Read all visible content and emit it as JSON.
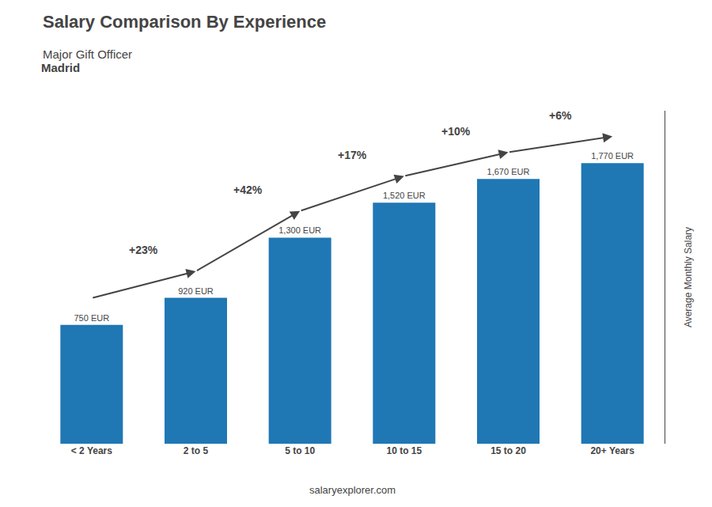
{
  "chart_data": {
    "type": "bar",
    "title": "Salary Comparison By Experience",
    "subtitle": "Major Gift Officer",
    "ylabel": "Average Monthly Salary",
    "categories": [
      "< 2 Years",
      "2 to 5",
      "5 to 10",
      "10 to 15",
      "15 to 20",
      "20+ Years"
    ],
    "values": [
      750,
      920,
      1300,
      1520,
      1670,
      1770
    ],
    "value_labels": [
      "750 EUR",
      "920 EUR",
      "1,300 EUR",
      "1,520 EUR",
      "1,670 EUR",
      "1,770 EUR"
    ],
    "data_labels": true,
    "ylim": [
      0,
      2100
    ],
    "tick_labels": "x",
    "grid": false,
    "annotations": [
      {
        "text": "Madrid"
      },
      {
        "text": "+23%",
        "from": "< 2 Years",
        "to": "2 to 5"
      },
      {
        "text": "+42%",
        "from": "2 to 5",
        "to": "5 to 10"
      },
      {
        "text": "+17%",
        "from": "5 to 10",
        "to": "10 to 15"
      },
      {
        "text": "+10%",
        "from": "10 to 15",
        "to": "15 to 20"
      },
      {
        "text": "+6%",
        "from": "15 to 20",
        "to": "20+ Years"
      },
      {
        "text": "salaryexplorer.com"
      }
    ]
  }
}
